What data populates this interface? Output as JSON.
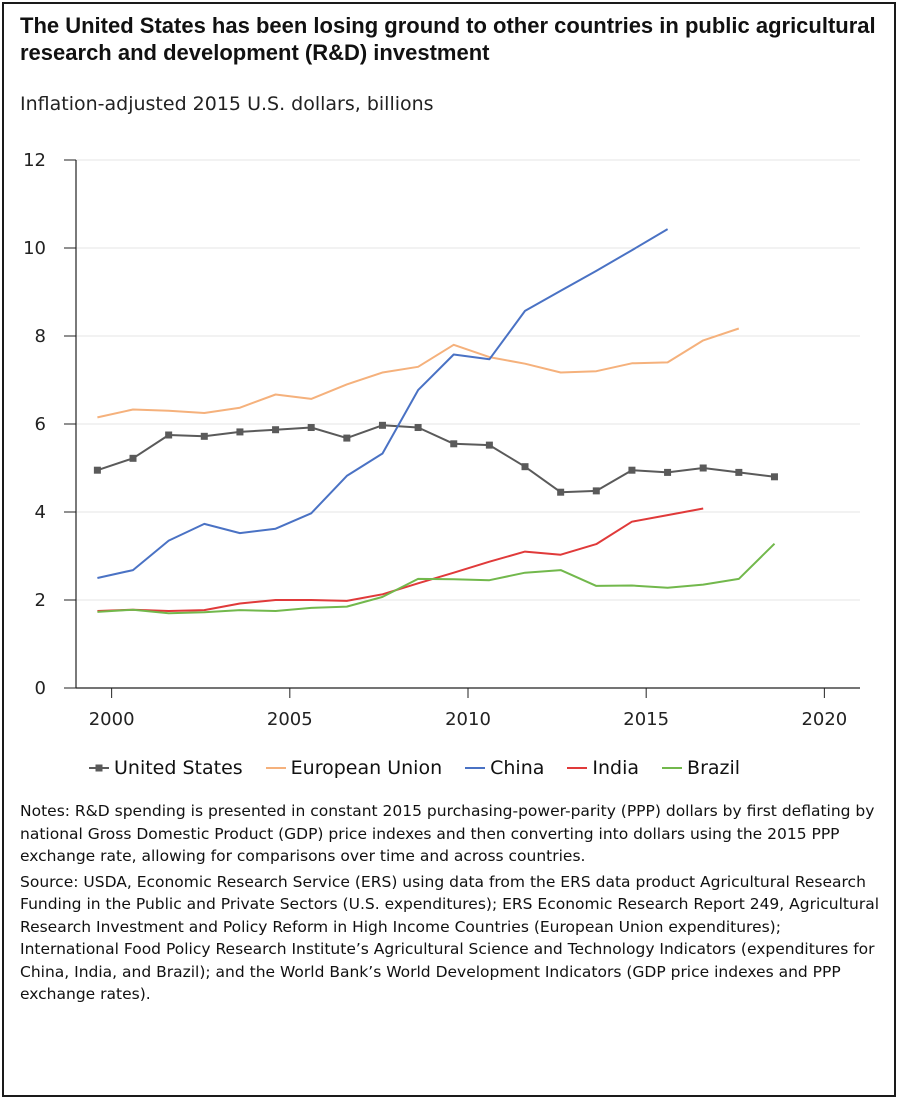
{
  "title": "The United States has been losing ground to other countries in public agricultural research and development (R&D) investment",
  "subtitle": "Inflation-adjusted 2015 U.S. dollars, billions",
  "notes": "Notes: R&D spending is presented in constant 2015 purchasing-power-parity (PPP) dollars by first deflating by national Gross Domestic Product (GDP) price indexes and then converting into dollars using the 2015 PPP exchange rate, allowing for comparisons over time and across countries.",
  "source": "Source: USDA, Economic Research Service (ERS) using data from the ERS data product Agricultural Research Funding in the Public and Private Sectors (U.S. expenditures); ERS Economic Research Report 249, Agricultural Research Investment and Policy Reform in High Income Countries (European Union expenditures); International Food Policy Research Institute’s Agricultural Science and Technology Indicators (expenditures for China, India, and Brazil); and the World Bank’s World Development Indicators (GDP price indexes and PPP exchange rates).",
  "chart_data": {
    "type": "line",
    "xlim": [
      1999,
      2021
    ],
    "ylim": [
      0,
      12
    ],
    "x_ticks": [
      2000,
      2005,
      2010,
      2015,
      2020
    ],
    "y_ticks": [
      0,
      2,
      4,
      6,
      8,
      10,
      12
    ],
    "grid": "horizontal",
    "legend_position": "bottom",
    "series": [
      {
        "name": "United States",
        "color": "#5a5a5a",
        "markers": true,
        "x": [
          1999.6,
          2000.6,
          2001.6,
          2002.6,
          2003.6,
          2004.6,
          2005.6,
          2006.6,
          2007.6,
          2008.6,
          2009.6,
          2010.6,
          2011.6,
          2012.6,
          2013.6,
          2014.6,
          2015.6,
          2016.6,
          2017.6,
          2018.6
        ],
        "y": [
          4.95,
          5.22,
          5.75,
          5.72,
          5.82,
          5.87,
          5.92,
          5.68,
          5.97,
          5.92,
          5.55,
          5.52,
          5.03,
          4.45,
          4.48,
          4.95,
          4.9,
          5.0,
          4.9,
          4.8
        ]
      },
      {
        "name": "European Union",
        "color": "#f5b17c",
        "markers": false,
        "x": [
          1999.6,
          2000.6,
          2001.6,
          2002.6,
          2003.6,
          2004.6,
          2005.6,
          2006.6,
          2007.6,
          2008.6,
          2009.6,
          2010.6,
          2011.6,
          2012.6,
          2013.6,
          2014.6,
          2015.6,
          2016.6,
          2017.6
        ],
        "y": [
          6.15,
          6.33,
          6.3,
          6.25,
          6.37,
          6.67,
          6.57,
          6.9,
          7.17,
          7.3,
          7.8,
          7.52,
          7.37,
          7.17,
          7.2,
          7.38,
          7.4,
          7.9,
          8.17
        ]
      },
      {
        "name": "China",
        "color": "#4a72c4",
        "markers": false,
        "x": [
          1999.6,
          2000.6,
          2001.6,
          2002.6,
          2003.6,
          2004.6,
          2005.6,
          2006.6,
          2007.6,
          2008.6,
          2009.6,
          2010.6,
          2011.6,
          2012.6,
          2013.6,
          2014.6,
          2015.6
        ],
        "y": [
          2.5,
          2.68,
          3.35,
          3.73,
          3.52,
          3.62,
          3.97,
          4.82,
          5.33,
          6.77,
          7.58,
          7.47,
          8.57,
          9.03,
          9.48,
          9.95,
          10.43
        ]
      },
      {
        "name": "India",
        "color": "#e03a3a",
        "markers": false,
        "x": [
          1999.6,
          2000.6,
          2001.6,
          2002.6,
          2003.6,
          2004.6,
          2005.6,
          2006.6,
          2007.6,
          2008.6,
          2009.6,
          2010.6,
          2011.6,
          2012.6,
          2013.6,
          2014.6,
          2015.6,
          2016.6
        ],
        "y": [
          1.75,
          1.78,
          1.75,
          1.77,
          1.92,
          2.0,
          2.0,
          1.98,
          2.13,
          2.38,
          2.62,
          2.87,
          3.1,
          3.03,
          3.27,
          3.78,
          3.93,
          4.08
        ]
      },
      {
        "name": "Brazil",
        "color": "#72b84c",
        "markers": false,
        "x": [
          1999.6,
          2000.6,
          2001.6,
          2002.6,
          2003.6,
          2004.6,
          2005.6,
          2006.6,
          2007.6,
          2008.6,
          2009.6,
          2010.6,
          2011.6,
          2012.6,
          2013.6,
          2014.6,
          2015.6,
          2016.6,
          2017.6,
          2018.6
        ],
        "y": [
          1.73,
          1.78,
          1.7,
          1.72,
          1.77,
          1.75,
          1.82,
          1.85,
          2.07,
          2.48,
          2.47,
          2.45,
          2.62,
          2.68,
          2.32,
          2.33,
          2.28,
          2.35,
          2.48,
          3.28
        ]
      }
    ]
  }
}
